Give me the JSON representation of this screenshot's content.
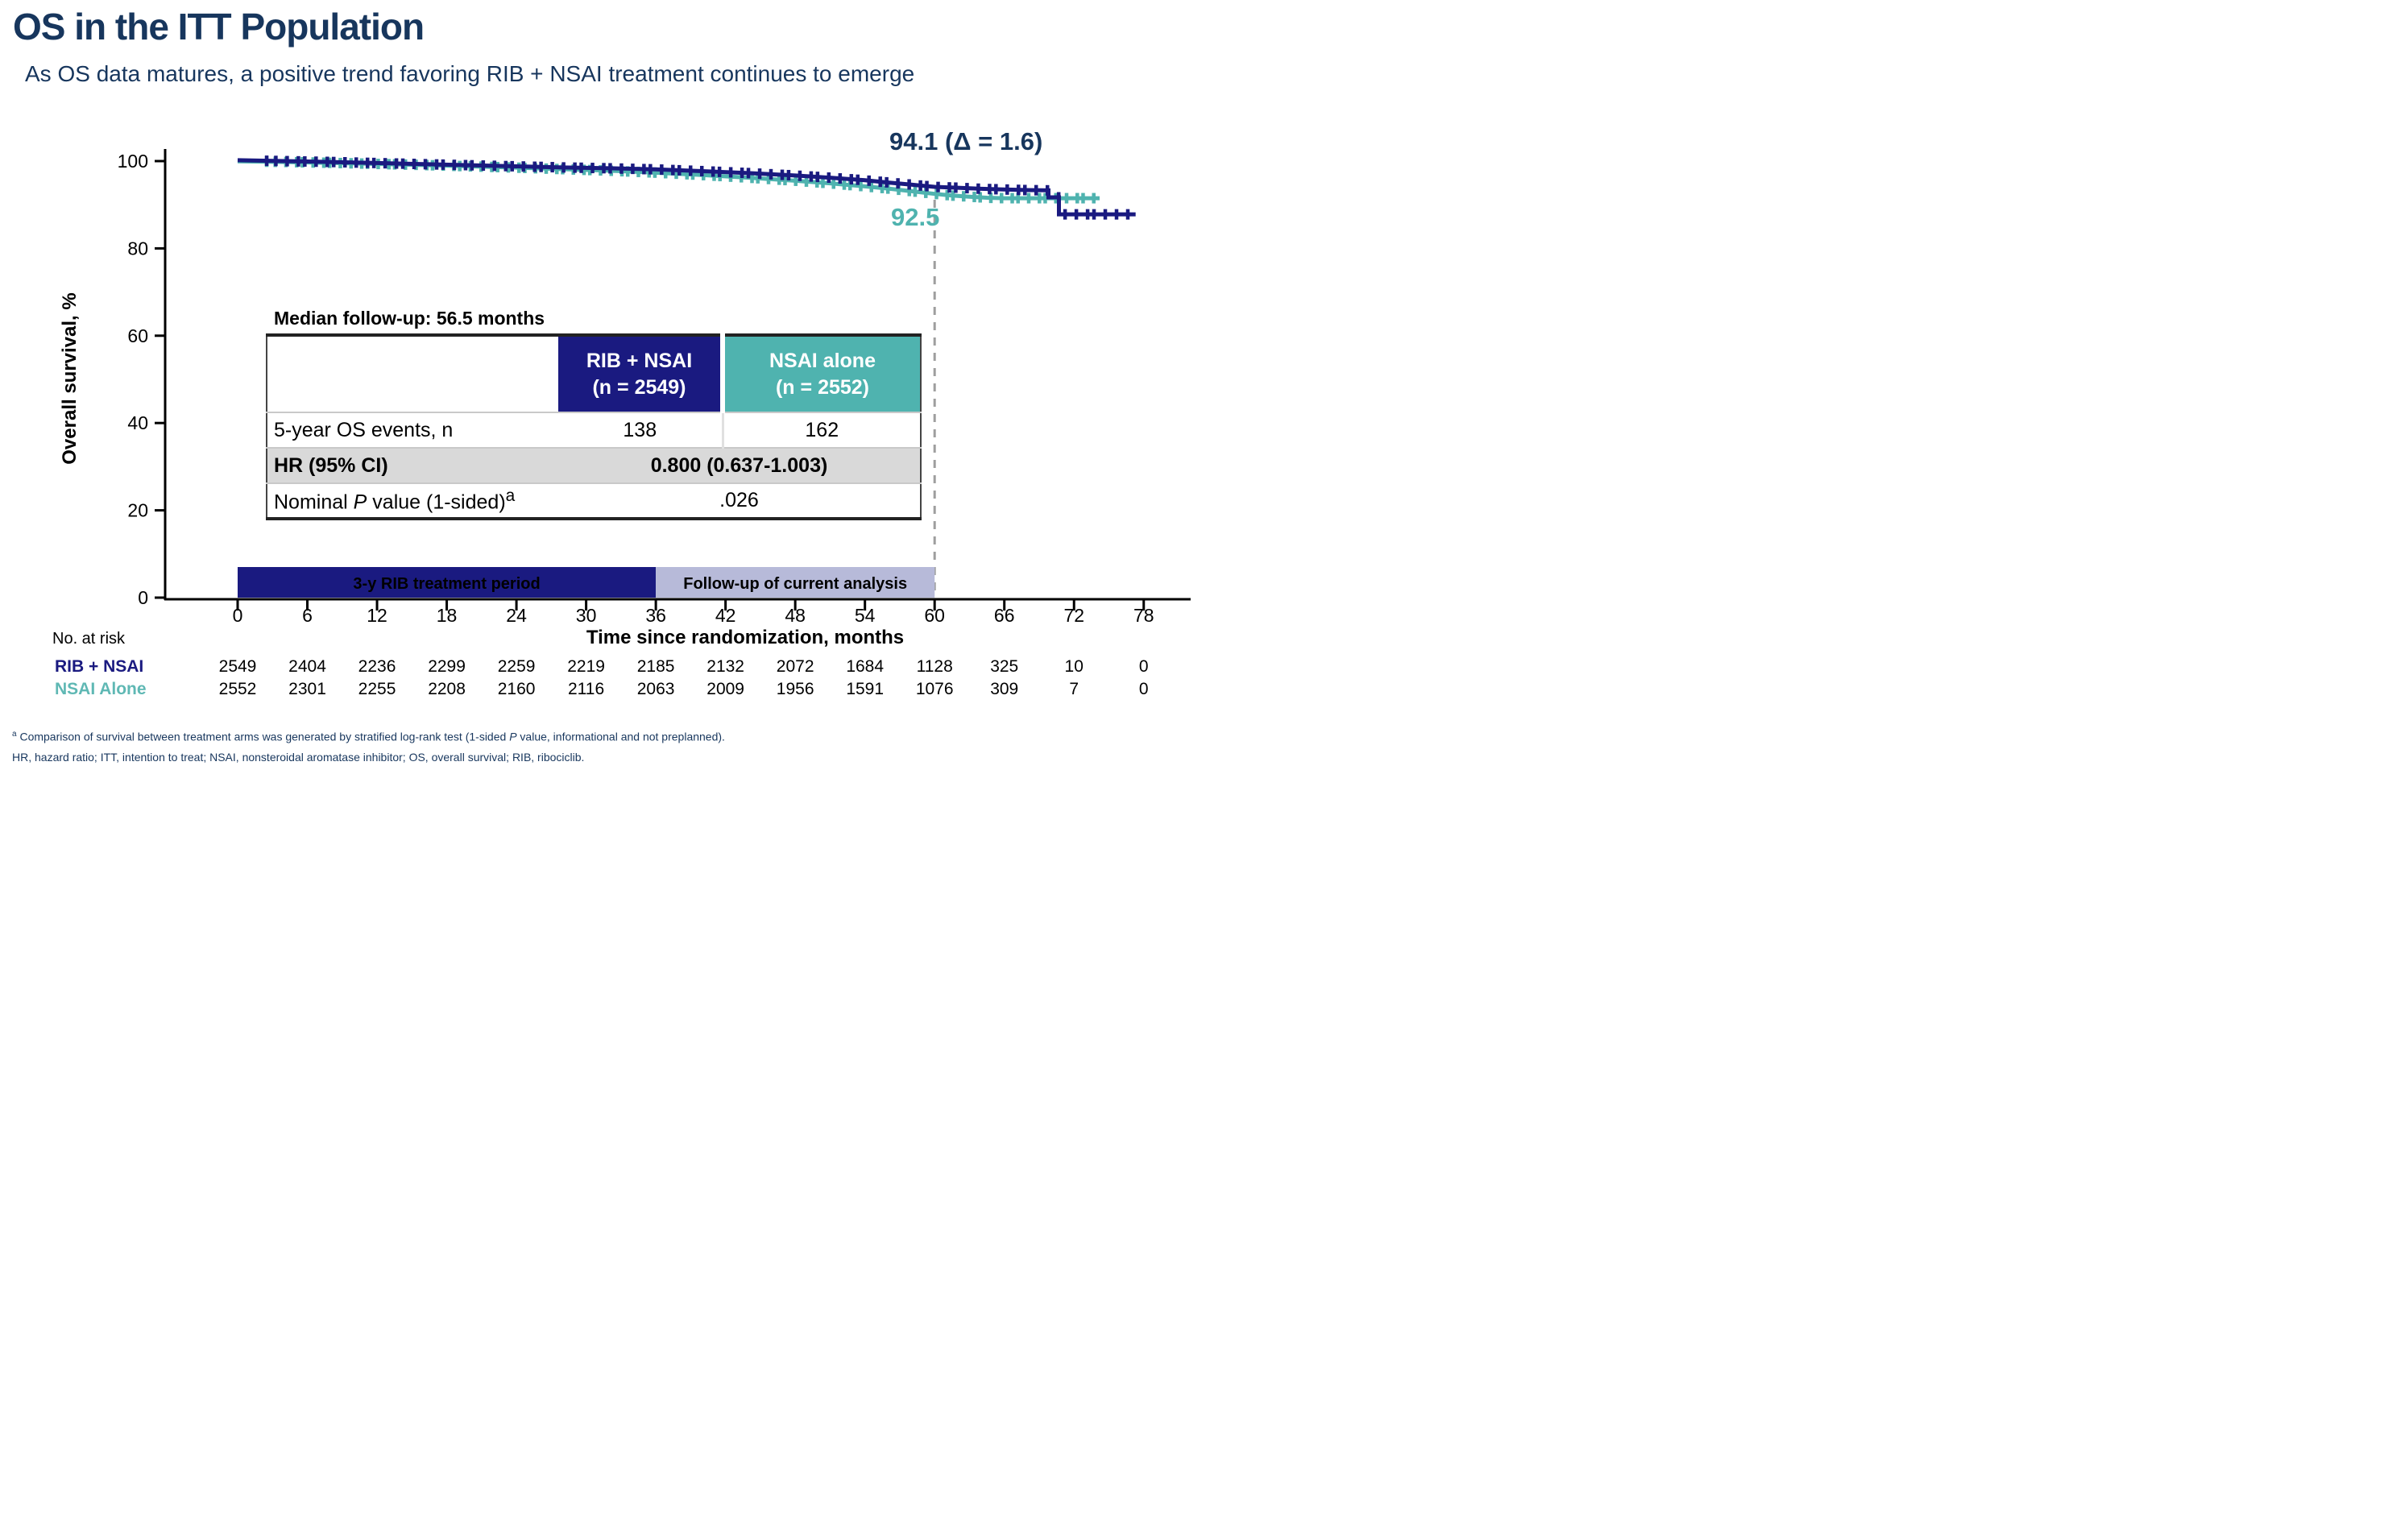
{
  "header": {
    "title": "OS in the ITT Population",
    "subtitle": "As OS data matures, a positive trend favoring RIB + NSAI treatment continues to emerge"
  },
  "colors": {
    "heading_navy": "#17365D",
    "curve_navy": "#1A1A80",
    "curve_teal": "#4FB3AF",
    "followup_bar_lavender": "#B7BAD9",
    "gray_row": "#D9D9D9",
    "dashed_reference": "#9E9E9E"
  },
  "chart_data": {
    "type": "line",
    "subtype": "kaplan-meier-step",
    "title": "",
    "xlabel": "Time since randomization, months",
    "ylabel": "Overall survival, %",
    "xlim": [
      0,
      78
    ],
    "ylim": [
      0,
      105
    ],
    "grid": false,
    "x_ticks": [
      "0",
      "6",
      "12",
      "18",
      "24",
      "30",
      "36",
      "42",
      "48",
      "54",
      "60",
      "66",
      "72",
      "78"
    ],
    "y_ticks": [
      "0",
      "20",
      "40",
      "60",
      "80",
      "100"
    ],
    "reference_line": {
      "month": 60,
      "style": "dashed",
      "color": "#9E9E9E"
    },
    "annotations": [
      {
        "text": "94.1 (Δ = 1.6)",
        "series": "RIB + NSAI",
        "month": 60,
        "color": "#17365D"
      },
      {
        "text": "92.5",
        "series": "NSAI alone",
        "month": 60,
        "color": "#4FB3AF"
      }
    ],
    "period_bars": [
      {
        "label": "3-y RIB treatment period",
        "from": 0,
        "to": 36,
        "bg": "#1A1A80",
        "text_color": "#ffffff"
      },
      {
        "label": "Follow-up of current analysis",
        "from": 36,
        "to": 60,
        "bg": "#B7BAD9",
        "text_color": "#ffffff"
      }
    ],
    "series": [
      {
        "name": "NSAI alone",
        "color": "#4FB3AF",
        "points": [
          [
            0,
            99.95
          ],
          [
            4,
            99.8
          ],
          [
            8,
            99.6
          ],
          [
            12,
            99.35
          ],
          [
            16,
            99.1
          ],
          [
            20,
            98.8
          ],
          [
            24,
            98.5
          ],
          [
            28,
            98.15
          ],
          [
            32,
            97.8
          ],
          [
            36,
            97.35
          ],
          [
            40,
            96.8
          ],
          [
            44,
            96.2
          ],
          [
            48,
            95.5
          ],
          [
            51,
            94.9
          ],
          [
            54,
            94.2
          ],
          [
            56,
            93.7
          ],
          [
            58,
            93.1
          ],
          [
            60,
            92.5
          ],
          [
            61.5,
            92.1
          ],
          [
            63,
            91.85
          ],
          [
            64.5,
            91.6
          ],
          [
            66,
            91.5
          ],
          [
            74.2,
            91.5
          ]
        ],
        "censor_marks": {
          "from": 2.5,
          "to": 74.0,
          "step": 0.8
        },
        "value_at_60_months": 92.5
      },
      {
        "name": "RIB + NSAI",
        "color": "#1A1A80",
        "points": [
          [
            0,
            100.2
          ],
          [
            4,
            100.0
          ],
          [
            8,
            99.8
          ],
          [
            12,
            99.55
          ],
          [
            16,
            99.3
          ],
          [
            20,
            99.05
          ],
          [
            24,
            98.8
          ],
          [
            28,
            98.55
          ],
          [
            32,
            98.35
          ],
          [
            36,
            98.1
          ],
          [
            40,
            97.7
          ],
          [
            44,
            97.25
          ],
          [
            48,
            96.7
          ],
          [
            51,
            96.2
          ],
          [
            54,
            95.6
          ],
          [
            56,
            95.1
          ],
          [
            58,
            94.6
          ],
          [
            60,
            94.1
          ],
          [
            62,
            93.9
          ],
          [
            64,
            93.65
          ],
          [
            66,
            93.5
          ],
          [
            68,
            93.35
          ],
          [
            69.8,
            93.3
          ],
          [
            69.8,
            91.7
          ],
          [
            70.7,
            91.7
          ],
          [
            70.7,
            87.8
          ],
          [
            77.3,
            87.8
          ]
        ],
        "censor_marks": {
          "from": 2.5,
          "to": 77.0,
          "step": 0.85
        },
        "value_at_60_months": 94.1
      }
    ]
  },
  "stats_table": {
    "caption": "Median follow-up: 56.5 months",
    "col_headers": [
      {
        "line1": "RIB + NSAI",
        "line2": "(n = 2549)"
      },
      {
        "line1": "NSAI alone",
        "line2": "(n = 2552)"
      }
    ],
    "rows": [
      {
        "label": "5-year OS events, n",
        "values": [
          "138",
          "162"
        ]
      },
      {
        "label": "HR (95% CI)",
        "value_span": "0.800 (0.637-1.003)"
      },
      {
        "label_prefix": "Nominal ",
        "label_italic": "P",
        "label_suffix": " value (1-sided)",
        "label_sup": "a",
        "value_span": ".026"
      }
    ]
  },
  "risk_table": {
    "caption": "No. at risk",
    "time_points": [
      "0",
      "6",
      "12",
      "18",
      "24",
      "30",
      "36",
      "42",
      "48",
      "54",
      "60",
      "66",
      "72",
      "78"
    ],
    "rows": [
      {
        "label": "RIB + NSAI",
        "color": "#1A1A80",
        "values": [
          "2549",
          "2404",
          "2236",
          "2299",
          "2259",
          "2219",
          "2185",
          "2132",
          "2072",
          "1684",
          "1128",
          "325",
          "10",
          "0"
        ]
      },
      {
        "label": "NSAI Alone",
        "color": "#5FB8B4",
        "values": [
          "2552",
          "2301",
          "2255",
          "2208",
          "2160",
          "2116",
          "2063",
          "2009",
          "1956",
          "1591",
          "1076",
          "309",
          "7",
          "0"
        ]
      }
    ]
  },
  "footnotes": {
    "line1_sup": "a",
    "line1_pre": " Comparison of survival between treatment arms was generated by stratified log-rank test (1-sided ",
    "line1_italic": "P",
    "line1_post": " value, informational and not preplanned).",
    "line2": "HR, hazard ratio; ITT, intention to treat; NSAI, nonsteroidal aromatase inhibitor; OS, overall survival; RIB, ribociclib."
  }
}
